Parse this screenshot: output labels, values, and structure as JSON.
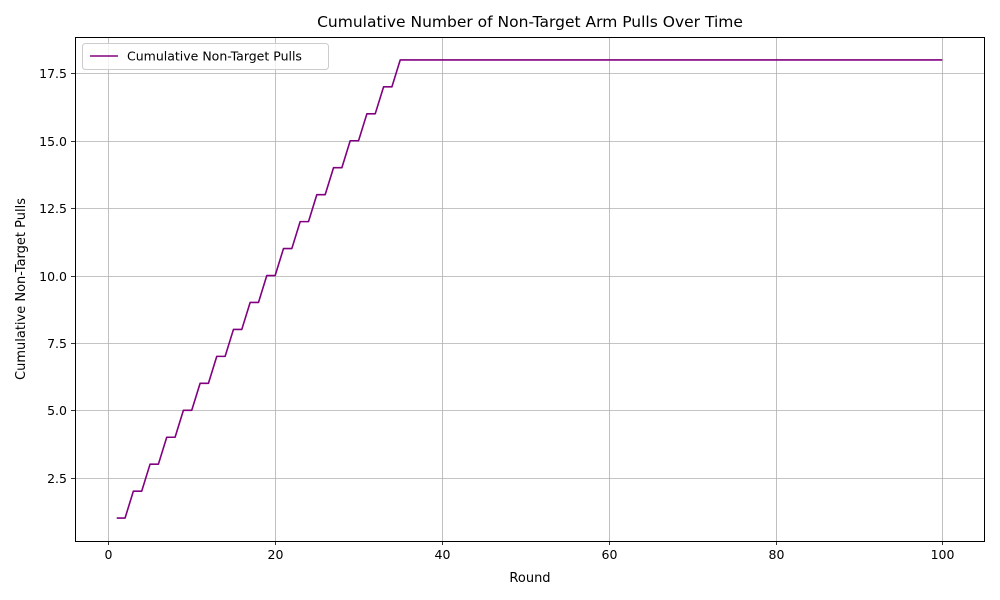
{
  "chart_data": {
    "type": "line",
    "title": "Cumulative Number of Non-Target Arm Pulls Over Time",
    "xlabel": "Round",
    "ylabel": "Cumulative Non-Target Pulls",
    "xlim": [
      -4,
      105
    ],
    "ylim": [
      0.15,
      18.85
    ],
    "xticks": [
      0,
      20,
      40,
      60,
      80,
      100
    ],
    "xtick_labels": [
      "0",
      "20",
      "40",
      "60",
      "80",
      "100"
    ],
    "yticks": [
      2.5,
      5.0,
      7.5,
      10.0,
      12.5,
      15.0,
      17.5
    ],
    "ytick_labels": [
      "2.5",
      "5.0",
      "7.5",
      "10.0",
      "12.5",
      "15.0",
      "17.5"
    ],
    "grid": true,
    "legend_position": "top-left",
    "series": [
      {
        "name": "Cumulative Non-Target Pulls",
        "color": "#800080",
        "x": [
          1,
          2,
          3,
          4,
          5,
          6,
          7,
          8,
          9,
          10,
          11,
          12,
          13,
          14,
          15,
          16,
          17,
          18,
          19,
          20,
          21,
          22,
          23,
          24,
          25,
          26,
          27,
          28,
          29,
          30,
          31,
          32,
          33,
          34,
          35,
          36,
          37,
          38,
          39,
          40,
          41,
          42,
          43,
          44,
          45,
          46,
          47,
          48,
          49,
          50,
          51,
          52,
          53,
          54,
          55,
          56,
          57,
          58,
          59,
          60,
          61,
          62,
          63,
          64,
          65,
          66,
          67,
          68,
          69,
          70,
          71,
          72,
          73,
          74,
          75,
          76,
          77,
          78,
          79,
          80,
          81,
          82,
          83,
          84,
          85,
          86,
          87,
          88,
          89,
          90,
          91,
          92,
          93,
          94,
          95,
          96,
          97,
          98,
          99,
          100
        ],
        "y": [
          1,
          1,
          2,
          2,
          3,
          3,
          4,
          4,
          5,
          5,
          6,
          6,
          7,
          7,
          8,
          8,
          9,
          9,
          10,
          10,
          11,
          11,
          12,
          12,
          13,
          13,
          14,
          14,
          15,
          15,
          16,
          16,
          17,
          17,
          18,
          18,
          18,
          18,
          18,
          18,
          18,
          18,
          18,
          18,
          18,
          18,
          18,
          18,
          18,
          18,
          18,
          18,
          18,
          18,
          18,
          18,
          18,
          18,
          18,
          18,
          18,
          18,
          18,
          18,
          18,
          18,
          18,
          18,
          18,
          18,
          18,
          18,
          18,
          18,
          18,
          18,
          18,
          18,
          18,
          18,
          18,
          18,
          18,
          18,
          18,
          18,
          18,
          18,
          18,
          18,
          18,
          18,
          18,
          18,
          18,
          18,
          18,
          18,
          18,
          18
        ]
      }
    ]
  }
}
